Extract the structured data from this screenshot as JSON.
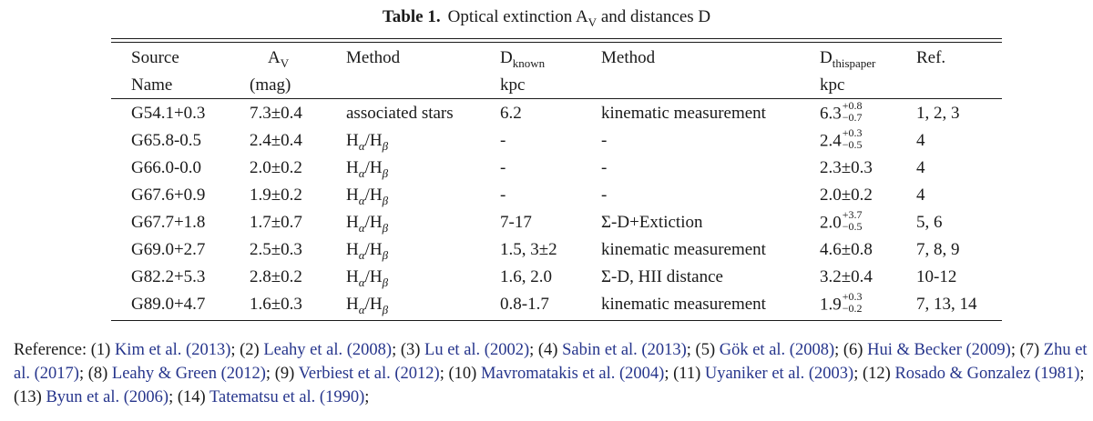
{
  "caption": {
    "label": "Table 1.",
    "text": "Optical extinction A",
    "text_sub": "V",
    "text_end": " and distances D"
  },
  "header": {
    "row1": {
      "source": "Source",
      "av": "A",
      "av_sub": "V",
      "method": "Method",
      "dknown": "D",
      "dknown_sub": "known",
      "method2": "Method",
      "dthis": "D",
      "dthis_sub": "thispaper",
      "ref": "Ref."
    },
    "row2": {
      "source": "Name",
      "av": "(mag)",
      "dknown": "kpc",
      "dthis": "kpc"
    }
  },
  "rows": [
    {
      "source": "G54.1+0.3",
      "av": "7.3±0.4",
      "method": "associated stars",
      "dknown": "6.2",
      "method2": "kinematic measurement",
      "dthis": "6.3",
      "dthis_up": "+0.8",
      "dthis_dn": "−0.7",
      "ref": "1, 2, 3"
    },
    {
      "source": "G65.8-0.5",
      "av": "2.4±0.4",
      "method": "Hα/Hβ",
      "dknown": "-",
      "method2": "-",
      "dthis": "2.4",
      "dthis_up": "+0.3",
      "dthis_dn": "−0.5",
      "ref": "4"
    },
    {
      "source": "G66.0-0.0",
      "av": "2.0±0.2",
      "method": "Hα/Hβ",
      "dknown": "-",
      "method2": "-",
      "dthis": "2.3±0.3",
      "ref": "4"
    },
    {
      "source": "G67.6+0.9",
      "av": "1.9±0.2",
      "method": "Hα/Hβ",
      "dknown": "-",
      "method2": "-",
      "dthis": "2.0±0.2",
      "ref": "4"
    },
    {
      "source": "G67.7+1.8",
      "av": "1.7±0.7",
      "method": "Hα/Hβ",
      "dknown": "7-17",
      "method2": "Σ-D+Extiction",
      "dthis": "2.0",
      "dthis_up": "+3.7",
      "dthis_dn": "−0.5",
      "ref": "5, 6"
    },
    {
      "source": "G69.0+2.7",
      "av": "2.5±0.3",
      "method": "Hα/Hβ",
      "dknown": "1.5, 3±2",
      "method2": "kinematic measurement",
      "dthis": "4.6±0.8",
      "ref": "7, 8, 9"
    },
    {
      "source": "G82.2+5.3",
      "av": "2.8±0.2",
      "method": "Hα/Hβ",
      "dknown": "1.6, 2.0",
      "method2": "Σ-D, HII distance",
      "dthis": "3.2±0.4",
      "ref": "10-12"
    },
    {
      "source": "G89.0+4.7",
      "av": "1.6±0.3",
      "method": "Hα/Hβ",
      "dknown": "0.8-1.7",
      "method2": "kinematic measurement",
      "dthis": "1.9",
      "dthis_up": "+0.3",
      "dthis_dn": "−0.2",
      "ref": "7, 13, 14"
    }
  ],
  "references": {
    "lead": "Reference:",
    "items": [
      {
        "num": "(1)",
        "cite": "Kim et al. (2013)"
      },
      {
        "num": "(2)",
        "cite": "Leahy et al. (2008)"
      },
      {
        "num": "(3)",
        "cite": "Lu et al. (2002)"
      },
      {
        "num": "(4)",
        "cite": "Sabin et al. (2013)"
      },
      {
        "num": "(5)",
        "cite": "Gök et al. (2008)"
      },
      {
        "num": "(6)",
        "cite": "Hui & Becker (2009)"
      },
      {
        "num": "(7)",
        "cite": "Zhu et al. (2017)"
      },
      {
        "num": "(8)",
        "cite": "Leahy & Green (2012)"
      },
      {
        "num": "(9)",
        "cite": "Verbiest et al. (2012)"
      },
      {
        "num": "(10)",
        "cite": "Mavromatakis et al. (2004)"
      },
      {
        "num": "(11)",
        "cite": "Uyaniker et al. (2003)"
      },
      {
        "num": "(12)",
        "cite": "Rosado & Gonzalez (1981)"
      },
      {
        "num": "(13)",
        "cite": "Byun et al. (2006)"
      },
      {
        "num": "(14)",
        "cite": "Tatematsu et al. (1990)"
      }
    ],
    "colors": {
      "link": "#26358c",
      "text": "#1a1a1a"
    }
  }
}
